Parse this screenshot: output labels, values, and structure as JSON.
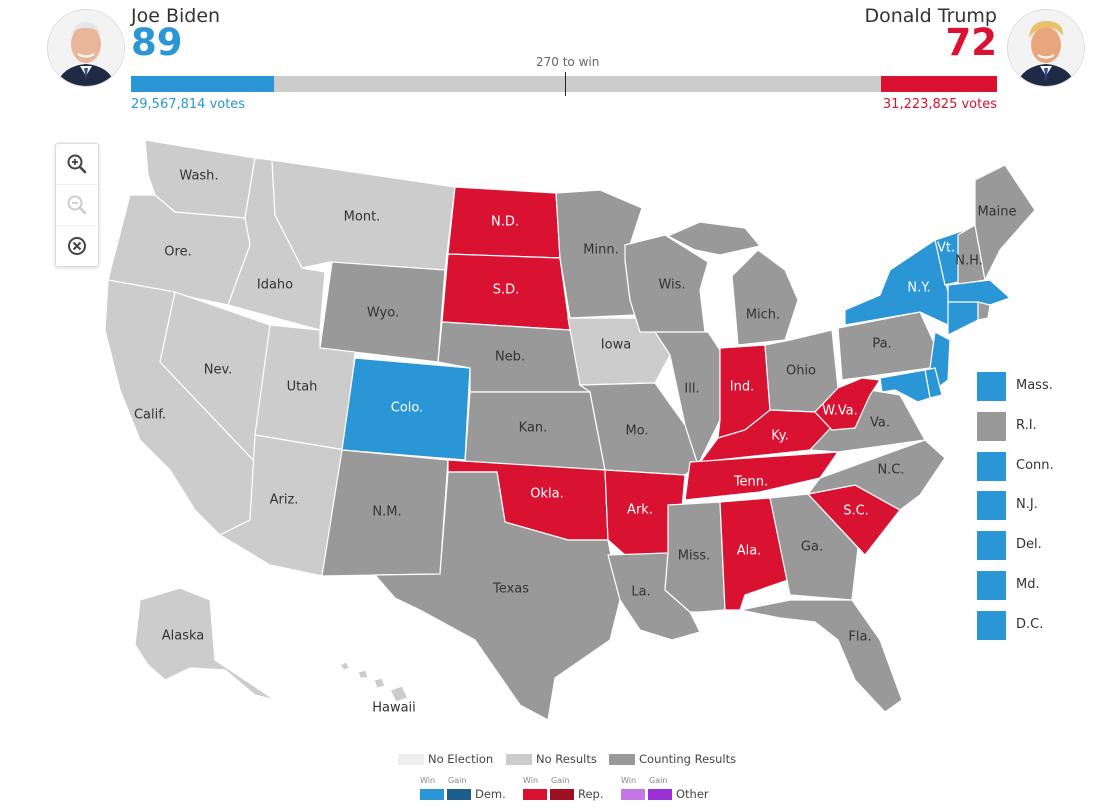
{
  "header": {
    "left": {
      "name": "Joe Biden",
      "electoral_votes": "89",
      "popular_votes": "29,567,814 votes",
      "color": "#2a96d5",
      "bar_fraction": 0.165
    },
    "right": {
      "name": "Donald Trump",
      "electoral_votes": "72",
      "popular_votes": "31,223,825 votes",
      "color": "#da1232",
      "bar_fraction": 0.134
    },
    "to_win": "270 to win"
  },
  "zoom_controls": {
    "zoom_in": "zoom-in-icon",
    "zoom_out": "zoom-out-icon",
    "reset": "reset-icon"
  },
  "colors": {
    "dem_win": "#2a96d5",
    "dem_gain": "#1d5e8e",
    "rep_win": "#da1232",
    "rep_gain": "#9e0f22",
    "other_win": "#c277e5",
    "other_gain": "#9a2fd4",
    "no_election": "#eeeeee",
    "no_results": "#cccccc",
    "counting": "#999999"
  },
  "states": {
    "wa": "Wash.",
    "or": "Ore.",
    "ca": "Calif.",
    "id": "Idaho",
    "nv": "Nev.",
    "mt": "Mont.",
    "wy": "Wyo.",
    "ut": "Utah",
    "az": "Ariz.",
    "co": "Colo.",
    "nm": "N.M.",
    "nd": "N.D.",
    "sd": "S.D.",
    "ne": "Neb.",
    "ks": "Kan.",
    "ok": "Okla.",
    "tx": "Texas",
    "mn": "Minn.",
    "ia": "Iowa",
    "mo": "Mo.",
    "ar": "Ark.",
    "la": "La.",
    "wi": "Wis.",
    "il": "Ill.",
    "mi": "Mich.",
    "in": "Ind.",
    "oh": "Ohio",
    "ky": "Ky.",
    "tn": "Tenn.",
    "ms": "Miss.",
    "al": "Ala.",
    "ga": "Ga.",
    "fl": "Fla.",
    "sc": "S.C.",
    "nc": "N.C.",
    "va": "Va.",
    "wv": "W.Va.",
    "pa": "Pa.",
    "ny": "N.Y.",
    "vt": "Vt.",
    "nh": "N.H.",
    "me": "Maine",
    "ak": "Alaska",
    "hi": "Hawaii"
  },
  "small_states": [
    {
      "label": "Mass.",
      "status": "dem"
    },
    {
      "label": "R.I.",
      "status": "counting"
    },
    {
      "label": "Conn.",
      "status": "dem"
    },
    {
      "label": "N.J.",
      "status": "dem"
    },
    {
      "label": "Del.",
      "status": "dem"
    },
    {
      "label": "Md.",
      "status": "dem"
    },
    {
      "label": "D.C.",
      "status": "dem"
    }
  ],
  "legend": {
    "no_election": "No Election",
    "no_results": "No Results",
    "counting": "Counting Results",
    "win": "Win",
    "gain": "Gain",
    "dem": "Dem.",
    "rep": "Rep.",
    "other": "Other"
  }
}
